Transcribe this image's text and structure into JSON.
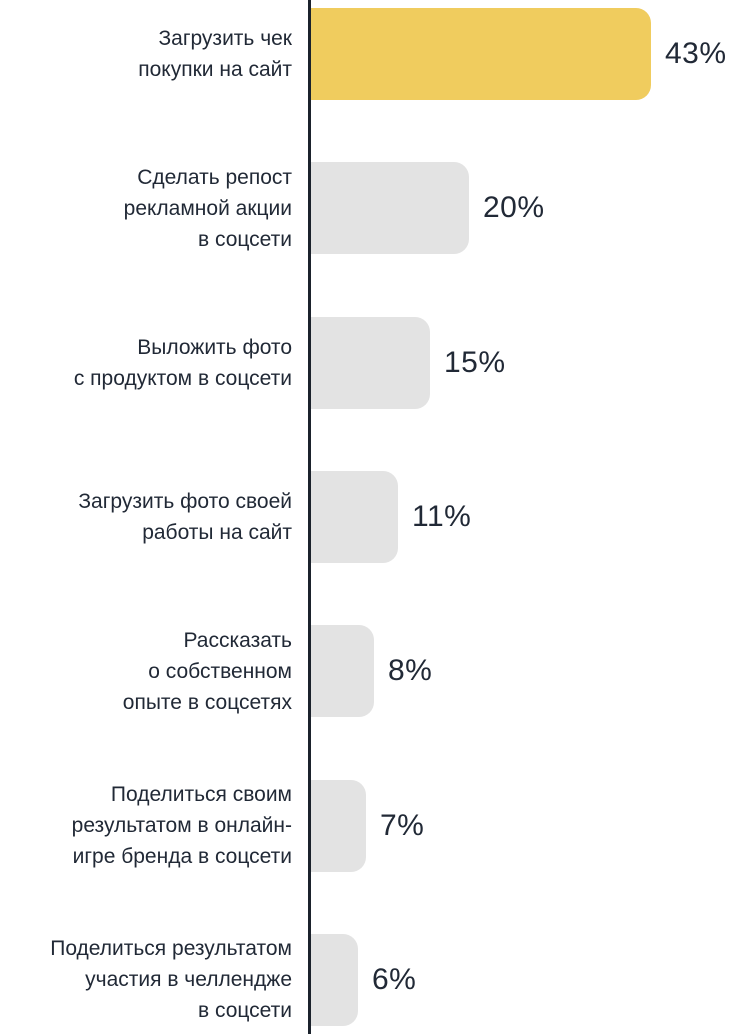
{
  "chart_data": {
    "type": "bar",
    "orientation": "horizontal",
    "title": "",
    "xlabel": "",
    "ylabel": "",
    "xlim": [
      0,
      43
    ],
    "grid": false,
    "legend": false,
    "categories": [
      "Загрузить чек покупки на сайт",
      "Сделать репост рекламной акции в соцсети",
      "Выложить фото с продуктом в соцсети",
      "Загрузить фото своей работы на сайт",
      "Рассказать о собственном опыте в соцсетях",
      "Поделиться своим результатом в онлайн-игре бренда в соцсети",
      "Поделиться результатом участия в челлендже в соцсети"
    ],
    "values": [
      43,
      20,
      15,
      11,
      8,
      7,
      6
    ],
    "rows": [
      {
        "label": "Загрузить чек\nпокупки на сайт",
        "value": 43,
        "value_label": "43%",
        "highlight": true
      },
      {
        "label": "Сделать репост\nрекламной акции\nв соцсети",
        "value": 20,
        "value_label": "20%",
        "highlight": false
      },
      {
        "label": "Выложить фото\nс продуктом в соцсети",
        "value": 15,
        "value_label": "15%",
        "highlight": false
      },
      {
        "label": "Загрузить фото своей\nработы на сайт",
        "value": 11,
        "value_label": "11%",
        "highlight": false
      },
      {
        "label": "Рассказать\nо собственном\nопыте в соцсетях",
        "value": 8,
        "value_label": "8%",
        "highlight": false
      },
      {
        "label": "Поделиться своим\nрезультатом в онлайн-\nигре бренда в соцсети",
        "value": 7,
        "value_label": "7%",
        "highlight": false
      },
      {
        "label": "Поделиться результатом\nучастия в челлендже\nв соцсети",
        "value": 6,
        "value_label": "6%",
        "highlight": false
      }
    ],
    "colors": {
      "highlight_bar": "#F0CC5E",
      "bar": "#E3E3E3",
      "text": "#212936",
      "axis": "#1B222C",
      "background": "#FFFFFF"
    }
  }
}
